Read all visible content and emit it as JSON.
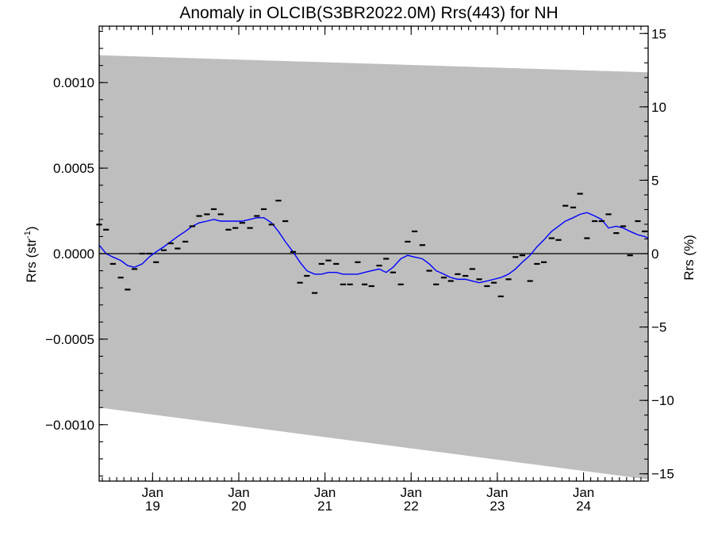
{
  "chart_data": {
    "type": "line",
    "title": "Anomaly in OLCIB(S3BR2022.0M) Rrs(443) for NH",
    "ylabel": "Rrs (str",
    "ylabel_sup": "-1",
    "ylabel_close": ")",
    "y2label": "Rrs (%)",
    "xlim": [
      2018.38,
      2024.75
    ],
    "ylim": [
      -0.00133,
      0.00133
    ],
    "y2lim": [
      -15.5,
      15.5
    ],
    "y_ticks": [
      {
        "value": 0.001,
        "label": "0.0010"
      },
      {
        "value": 0.0005,
        "label": "0.0005"
      },
      {
        "value": 0.0,
        "label": "0.0000"
      },
      {
        "value": -0.0005,
        "label": "−0.0005"
      },
      {
        "value": -0.001,
        "label": "−0.0010"
      }
    ],
    "y2_ticks": [
      {
        "value": 15,
        "label": "15"
      },
      {
        "value": 10,
        "label": "10"
      },
      {
        "value": 5,
        "label": "5"
      },
      {
        "value": 0,
        "label": "0"
      },
      {
        "value": -5,
        "label": "−5"
      },
      {
        "value": -10,
        "label": "−10"
      },
      {
        "value": -15,
        "label": "−15"
      }
    ],
    "x_ticks": [
      {
        "value": 2019.0,
        "month": "Jan",
        "year": "19"
      },
      {
        "value": 2020.0,
        "month": "Jan",
        "year": "20"
      },
      {
        "value": 2021.0,
        "month": "Jan",
        "year": "21"
      },
      {
        "value": 2022.0,
        "month": "Jan",
        "year": "22"
      },
      {
        "value": 2023.0,
        "month": "Jan",
        "year": "23"
      },
      {
        "value": 2024.0,
        "month": "Jan",
        "year": "24"
      }
    ],
    "uncertainty_band": {
      "color": "#bebebe",
      "x": [
        2018.38,
        2024.75
      ],
      "upper": [
        0.00116,
        0.00106
      ],
      "lower": [
        -0.0009,
        -0.00132
      ]
    },
    "monthly_points": {
      "color": "#000000",
      "x": [
        2018.38,
        2018.46,
        2018.54,
        2018.63,
        2018.71,
        2018.79,
        2018.88,
        2018.96,
        2019.04,
        2019.13,
        2019.21,
        2019.29,
        2019.38,
        2019.46,
        2019.54,
        2019.63,
        2019.71,
        2019.79,
        2019.88,
        2019.96,
        2020.04,
        2020.13,
        2020.21,
        2020.29,
        2020.38,
        2020.46,
        2020.54,
        2020.63,
        2020.71,
        2020.79,
        2020.88,
        2020.96,
        2021.04,
        2021.13,
        2021.21,
        2021.29,
        2021.38,
        2021.46,
        2021.54,
        2021.63,
        2021.71,
        2021.79,
        2021.88,
        2021.96,
        2022.04,
        2022.13,
        2022.21,
        2022.29,
        2022.38,
        2022.46,
        2022.54,
        2022.63,
        2022.71,
        2022.79,
        2022.88,
        2022.96,
        2023.04,
        2023.13,
        2023.21,
        2023.29,
        2023.38,
        2023.46,
        2023.54,
        2023.63,
        2023.71,
        2023.79,
        2023.88,
        2023.96,
        2024.04,
        2024.13,
        2024.21,
        2024.29,
        2024.38,
        2024.46,
        2024.54,
        2024.63,
        2024.71
      ],
      "y": [
        0.00017,
        0.00014,
        -6e-05,
        -0.00014,
        -0.00021,
        -9e-05,
        0.0,
        0.0,
        -5e-05,
        2e-05,
        6e-05,
        3e-05,
        7e-05,
        0.00016,
        0.00022,
        0.00023,
        0.00026,
        0.00023,
        0.00014,
        0.00015,
        0.00018,
        0.00015,
        0.00022,
        0.00026,
        0.00017,
        0.00031,
        0.00019,
        1e-05,
        -0.00017,
        -0.00013,
        -0.00023,
        -6e-05,
        -4e-05,
        -6e-05,
        -0.00018,
        -0.00018,
        -5e-05,
        -0.00018,
        -0.00019,
        -7e-05,
        -3e-05,
        -0.00011,
        -0.00018,
        7e-05,
        0.00013,
        5e-05,
        -0.0001,
        -0.00018,
        -0.00014,
        -0.00016,
        -0.00012,
        -0.00013,
        -9e-05,
        -0.00015,
        -0.00019,
        -0.00017,
        -0.00025,
        -0.00015,
        -2e-05,
        -1e-05,
        -0.00016,
        -6e-05,
        -5e-05,
        9e-05,
        8e-05,
        0.00028,
        0.00027,
        0.00035,
        9e-05,
        0.00019,
        0.00019,
        0.00023,
        0.00012,
        0.00016,
        -1e-05,
        0.00019,
        0.00013
      ]
    },
    "smoothed_line": {
      "color": "#0000ff",
      "x": [
        2018.38,
        2018.46,
        2018.54,
        2018.63,
        2018.71,
        2018.79,
        2018.88,
        2018.96,
        2019.04,
        2019.13,
        2019.21,
        2019.29,
        2019.38,
        2019.46,
        2019.54,
        2019.63,
        2019.71,
        2019.79,
        2019.88,
        2019.96,
        2020.04,
        2020.13,
        2020.21,
        2020.29,
        2020.38,
        2020.46,
        2020.54,
        2020.63,
        2020.71,
        2020.79,
        2020.88,
        2020.96,
        2021.04,
        2021.13,
        2021.21,
        2021.29,
        2021.38,
        2021.46,
        2021.54,
        2021.63,
        2021.71,
        2021.79,
        2021.88,
        2021.96,
        2022.04,
        2022.13,
        2022.21,
        2022.29,
        2022.38,
        2022.46,
        2022.54,
        2022.63,
        2022.71,
        2022.79,
        2022.88,
        2022.96,
        2023.04,
        2023.13,
        2023.21,
        2023.29,
        2023.38,
        2023.46,
        2023.54,
        2023.63,
        2023.71,
        2023.79,
        2023.88,
        2023.96,
        2024.04,
        2024.13,
        2024.21,
        2024.29,
        2024.38,
        2024.46,
        2024.54,
        2024.63,
        2024.71,
        2024.75
      ],
      "y": [
        5e-05,
        0.0,
        -2e-05,
        -4e-05,
        -7e-05,
        -8e-05,
        -6e-05,
        -2e-05,
        1e-05,
        4e-05,
        7e-05,
        0.0001,
        0.00013,
        0.00016,
        0.00018,
        0.00019,
        0.0002,
        0.00019,
        0.00019,
        0.00019,
        0.00019,
        0.0002,
        0.00021,
        0.00021,
        0.00018,
        0.00013,
        7e-05,
        1e-05,
        -5e-05,
        -0.0001,
        -0.00012,
        -0.00012,
        -0.00011,
        -0.00011,
        -0.00012,
        -0.00012,
        -0.00012,
        -0.00011,
        -0.0001,
        -9e-05,
        -0.00011,
        -8e-05,
        -3e-05,
        -1e-05,
        -2e-05,
        -3e-05,
        -6e-05,
        -0.0001,
        -0.00012,
        -0.00014,
        -0.00015,
        -0.00015,
        -0.00016,
        -0.00017,
        -0.00016,
        -0.00015,
        -0.00014,
        -0.00012,
        -9e-05,
        -5e-05,
        -1e-05,
        4e-05,
        8e-05,
        0.00013,
        0.00016,
        0.00019,
        0.00021,
        0.00023,
        0.00024,
        0.00022,
        0.0002,
        0.00015,
        0.00016,
        0.00015,
        0.00013,
        0.00011,
        0.0001,
        9e-05
      ]
    },
    "zero_line": {
      "value": 0.0,
      "color": "#000000"
    },
    "grid": false,
    "legend": "none"
  }
}
